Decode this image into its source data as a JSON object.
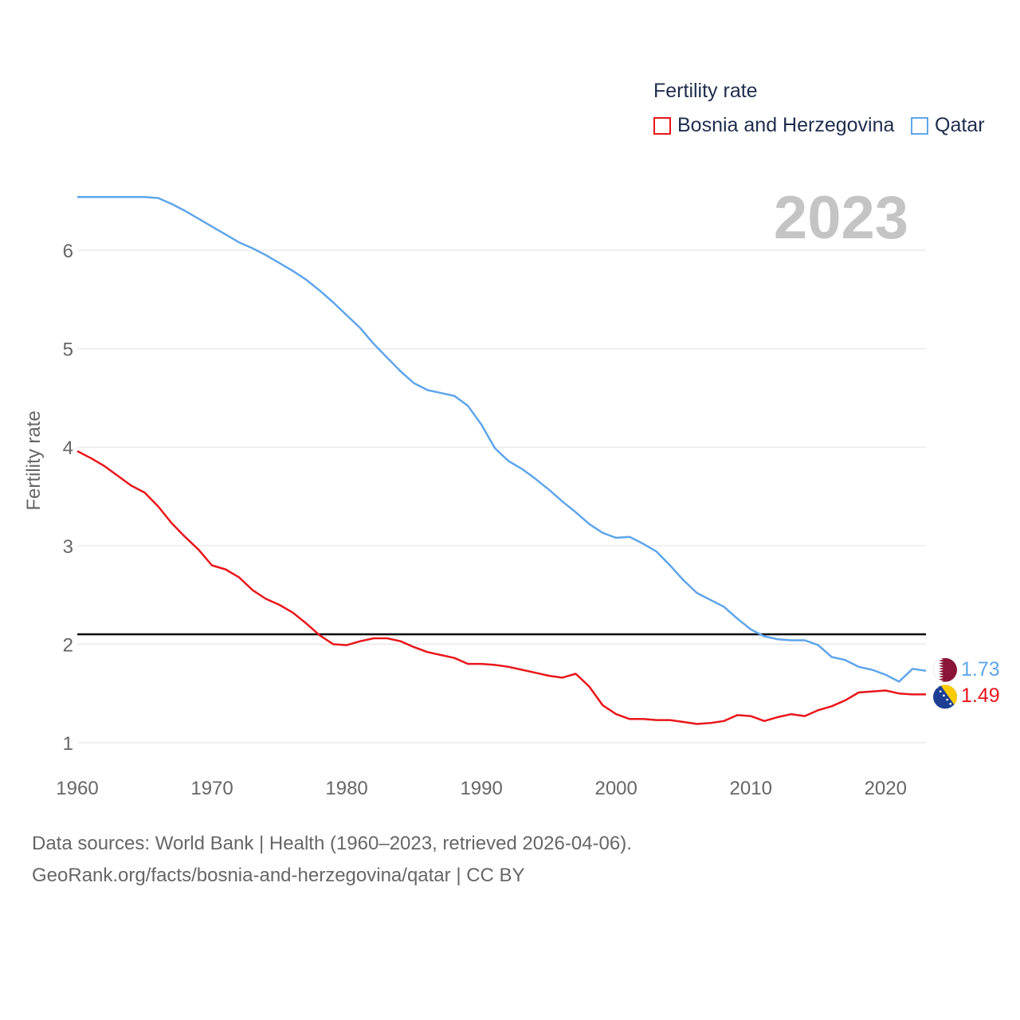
{
  "legend": {
    "title": "Fertility rate",
    "items": [
      {
        "name": "Bosnia and Herzegovina",
        "color": "#e8161b"
      },
      {
        "name": "Qatar",
        "color": "#5fa5ea"
      }
    ]
  },
  "year_label": "2023",
  "y_axis_title": "Fertility rate",
  "sources": {
    "line1": "Data sources: World Bank | Health (1960–2023, retrieved 2026-04-06).",
    "line2": "GeoRank.org/facts/bosnia-and-herzegovina/qatar | CC BY"
  },
  "end_labels": {
    "qatar": "1.73",
    "bosnia": "1.49"
  },
  "icons": {
    "qatar_flag": "qatar-flag-icon",
    "bosnia_flag": "bosnia-flag-icon"
  },
  "chart_data": {
    "type": "line",
    "title": "Fertility rate",
    "xlabel": "",
    "ylabel": "Fertility rate",
    "xlim": [
      1960,
      2023
    ],
    "ylim": [
      1,
      6.7
    ],
    "x_ticks": [
      1960,
      1970,
      1980,
      1990,
      2000,
      2010,
      2020
    ],
    "y_ticks": [
      1,
      2,
      3,
      4,
      5,
      6
    ],
    "grid": true,
    "reference_line": {
      "y": 2.1,
      "color": "#000000"
    },
    "x": [
      1960,
      1961,
      1962,
      1963,
      1964,
      1965,
      1966,
      1967,
      1968,
      1969,
      1970,
      1971,
      1972,
      1973,
      1974,
      1975,
      1976,
      1977,
      1978,
      1979,
      1980,
      1981,
      1982,
      1983,
      1984,
      1985,
      1986,
      1987,
      1988,
      1989,
      1990,
      1991,
      1992,
      1993,
      1994,
      1995,
      1996,
      1997,
      1998,
      1999,
      2000,
      2001,
      2002,
      2003,
      2004,
      2005,
      2006,
      2007,
      2008,
      2009,
      2010,
      2011,
      2012,
      2013,
      2014,
      2015,
      2016,
      2017,
      2018,
      2019,
      2020,
      2021,
      2022,
      2023
    ],
    "series": [
      {
        "name": "Bosnia and Herzegovina",
        "color": "#e8161b",
        "values": [
          3.96,
          3.89,
          3.81,
          3.71,
          3.61,
          3.54,
          3.4,
          3.23,
          3.09,
          2.96,
          2.8,
          2.76,
          2.68,
          2.55,
          2.46,
          2.4,
          2.32,
          2.21,
          2.09,
          2.0,
          1.99,
          2.03,
          2.06,
          2.06,
          2.03,
          1.97,
          1.92,
          1.89,
          1.86,
          1.8,
          1.8,
          1.79,
          1.77,
          1.74,
          1.71,
          1.68,
          1.66,
          1.7,
          1.57,
          1.38,
          1.29,
          1.24,
          1.24,
          1.23,
          1.23,
          1.21,
          1.19,
          1.2,
          1.22,
          1.28,
          1.27,
          1.22,
          1.26,
          1.29,
          1.27,
          1.33,
          1.37,
          1.43,
          1.51,
          1.52,
          1.53,
          1.5,
          1.49,
          1.49
        ]
      },
      {
        "name": "Qatar",
        "color": "#5fa5ea",
        "values": [
          6.54,
          6.54,
          6.54,
          6.54,
          6.54,
          6.54,
          6.53,
          6.47,
          6.4,
          6.32,
          6.24,
          6.16,
          6.08,
          6.02,
          5.95,
          5.87,
          5.79,
          5.7,
          5.59,
          5.47,
          5.34,
          5.21,
          5.05,
          4.91,
          4.77,
          4.65,
          4.58,
          4.55,
          4.52,
          4.42,
          4.23,
          3.99,
          3.86,
          3.78,
          3.68,
          3.57,
          3.45,
          3.34,
          3.22,
          3.13,
          3.08,
          3.09,
          3.02,
          2.94,
          2.8,
          2.65,
          2.52,
          2.45,
          2.38,
          2.26,
          2.15,
          2.08,
          2.05,
          2.04,
          2.04,
          1.99,
          1.87,
          1.84,
          1.77,
          1.74,
          1.69,
          1.62,
          1.75,
          1.73
        ]
      }
    ]
  }
}
